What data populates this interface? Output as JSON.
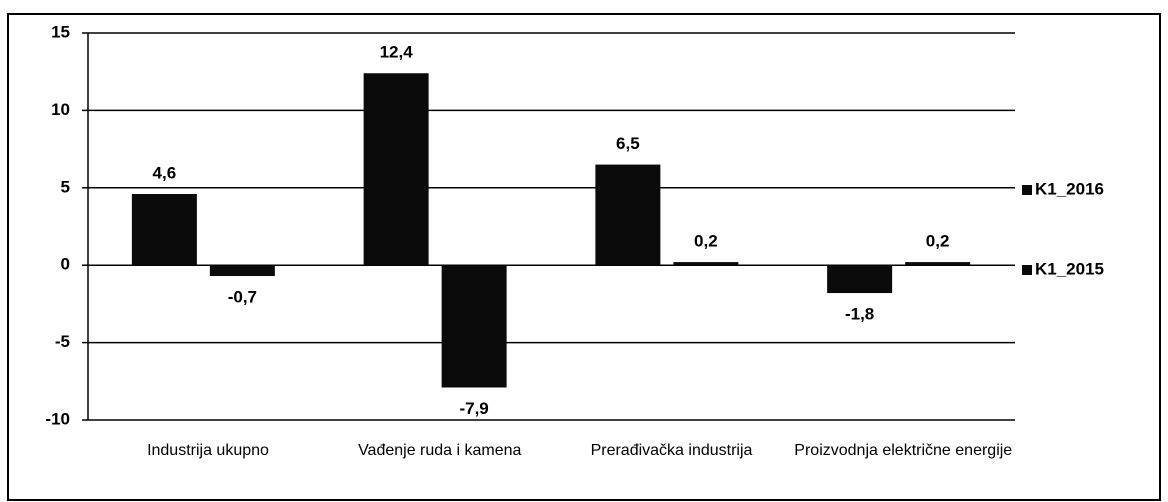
{
  "chart_data": {
    "type": "bar",
    "categories": [
      "Industrija ukupno",
      "Vađenje ruda i kamena",
      "Prerađivačka industrija",
      "Proizvodnja električne energije"
    ],
    "series": [
      {
        "name": "K1_2016",
        "color": "#0a0a0a",
        "values": [
          4.6,
          12.4,
          6.5,
          -1.8
        ],
        "value_labels": [
          "4,6",
          "12,4",
          "6,5",
          "-1,8"
        ]
      },
      {
        "name": "K1_2015",
        "color": "#0a0a0a",
        "values": [
          -0.7,
          -7.9,
          0.2,
          0.2
        ],
        "value_labels": [
          "-0,7",
          "-7,9",
          "0,2",
          "0,2"
        ]
      }
    ],
    "ylim": [
      -10,
      15
    ],
    "yticks": [
      -10,
      -5,
      0,
      5,
      10,
      15
    ],
    "grid": true,
    "legend": "right"
  }
}
